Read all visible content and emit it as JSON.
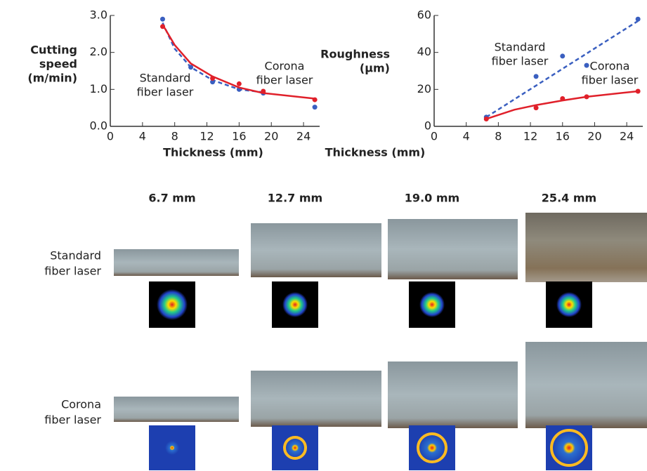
{
  "chart_data": [
    {
      "type": "scatter",
      "y_label": [
        "Cutting",
        "speed",
        "(m/min)"
      ],
      "x_label": "Thickness (mm)",
      "xlim": [
        0,
        26
      ],
      "xticks": [
        0,
        4,
        8,
        12,
        16,
        20,
        24
      ],
      "ylim": [
        0,
        3
      ],
      "yticks": [
        {
          "value": 0,
          "label": "0.0"
        },
        {
          "value": 1,
          "label": "1.0"
        },
        {
          "value": 2,
          "label": "2.0"
        },
        {
          "value": 3,
          "label": "3.0"
        }
      ],
      "series": [
        {
          "name": "Standard fiber laser",
          "label": [
            "Standard",
            "fiber laser"
          ],
          "color": "#3a5fc0",
          "line": "dashed",
          "x": [
            6.5,
            10,
            12.7,
            16,
            19,
            25.4
          ],
          "values": [
            2.9,
            1.6,
            1.2,
            1.0,
            0.9,
            0.52
          ],
          "fit": {
            "x": [
              6.5,
              8,
              10,
              12.7,
              16,
              19
            ],
            "values": [
              2.8,
              2.1,
              1.6,
              1.25,
              1.0,
              0.92
            ]
          }
        },
        {
          "name": "Corona fiber laser",
          "label": [
            "Corona",
            "fiber laser"
          ],
          "color": "#e0202a",
          "line": "solid",
          "x": [
            6.5,
            12.7,
            16,
            19,
            25.4
          ],
          "values": [
            2.7,
            1.3,
            1.15,
            0.95,
            0.72
          ],
          "fit": {
            "x": [
              6.5,
              8,
              10,
              12.7,
              16,
              19,
              25.4
            ],
            "values": [
              2.75,
              2.2,
              1.7,
              1.35,
              1.05,
              0.9,
              0.75
            ]
          }
        }
      ]
    },
    {
      "type": "scatter",
      "y_label": [
        "Roughness",
        "(µm)"
      ],
      "x_label": "Thickness (mm)",
      "xlim": [
        0,
        26
      ],
      "xticks": [
        0,
        4,
        8,
        12,
        16,
        20,
        24
      ],
      "ylim": [
        0,
        60
      ],
      "yticks": [
        0,
        20,
        40,
        60
      ],
      "series": [
        {
          "name": "Standard fiber laser",
          "label": [
            "Standard",
            "fiber laser"
          ],
          "color": "#3a5fc0",
          "line": "dashed",
          "x": [
            6.5,
            12.7,
            16,
            19,
            25.4
          ],
          "values": [
            5,
            27,
            38,
            33,
            58
          ],
          "fit": {
            "x": [
              6.5,
              25.4
            ],
            "values": [
              5,
              57
            ]
          }
        },
        {
          "name": "Corona fiber laser",
          "label": [
            "Corona",
            "fiber laser"
          ],
          "color": "#e0202a",
          "line": "solid",
          "x": [
            6.5,
            12.7,
            16,
            19,
            25.4
          ],
          "values": [
            4,
            10,
            15,
            16,
            19
          ],
          "fit": {
            "x": [
              6.5,
              10,
              12.7,
              16,
              19,
              25.4
            ],
            "values": [
              4,
              9,
              11.5,
              14,
              16,
              19
            ]
          }
        }
      ]
    }
  ],
  "photos": {
    "columns": [
      "6.7 mm",
      "12.7 mm",
      "19.0 mm",
      "25.4 mm"
    ],
    "rows": [
      [
        "Standard",
        "fiber laser"
      ],
      [
        "Corona",
        "fiber laser"
      ]
    ]
  }
}
